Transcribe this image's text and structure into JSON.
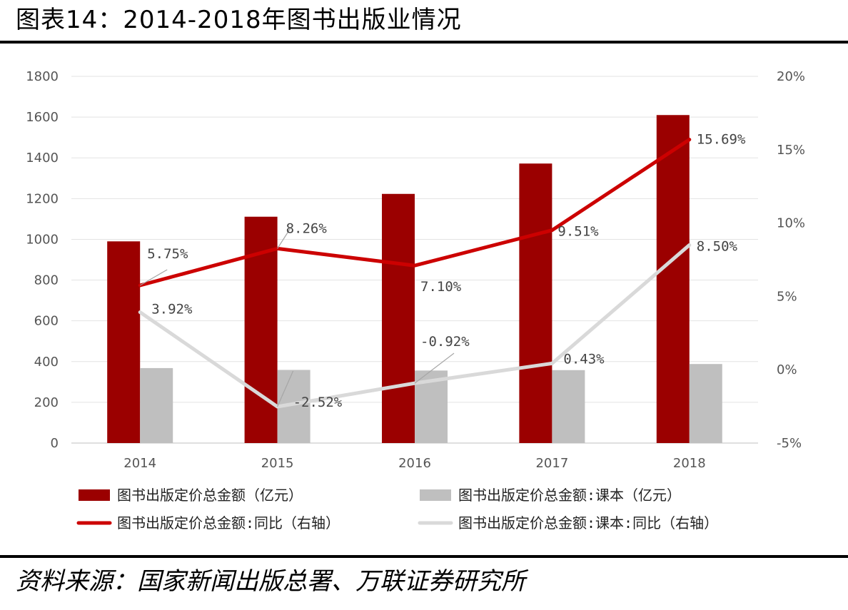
{
  "title": "图表14：2014-2018年图书出版业情况",
  "source": "资料来源：国家新闻出版总署、万联证券研究所",
  "chart_data": {
    "type": "bar",
    "categories": [
      "2014",
      "2015",
      "2016",
      "2017",
      "2018"
    ],
    "ylim": [
      0,
      1800
    ],
    "y2lim": [
      -0.05,
      0.2
    ],
    "yticks": [
      "0",
      "200",
      "400",
      "600",
      "800",
      "1000",
      "1200",
      "1400",
      "1600",
      "1800"
    ],
    "y2ticks": [
      "-5%",
      "0%",
      "5%",
      "10%",
      "15%",
      "20%"
    ],
    "grid": true,
    "legend_position": "bottom",
    "series": [
      {
        "name": "图书出版定价总金额（亿元）",
        "type": "bar",
        "axis": "left",
        "color": "#9b0000",
        "values": [
          990,
          1111,
          1223,
          1372,
          1610
        ]
      },
      {
        "name": "图书出版定价总金额:课本（亿元）",
        "type": "bar",
        "axis": "left",
        "color": "#bfbfbf",
        "values": [
          368,
          359,
          356,
          358,
          388
        ]
      },
      {
        "name": "图书出版定价总金额:同比（右轴）",
        "type": "line",
        "axis": "right",
        "color": "#cc0000",
        "values": [
          0.0575,
          0.0826,
          0.071,
          0.0951,
          0.1569
        ],
        "labels": [
          "5.75%",
          "8.26%",
          "7.10%",
          "9.51%",
          "15.69%"
        ]
      },
      {
        "name": "图书出版定价总金额:课本:同比（右轴）",
        "type": "line",
        "axis": "right",
        "color": "#d9d9d9",
        "values": [
          0.0392,
          -0.0252,
          -0.0092,
          0.0043,
          0.085
        ],
        "labels": [
          "3.92%",
          "-2.52%",
          "-0.92%",
          "0.43%",
          "8.50%"
        ]
      }
    ]
  }
}
